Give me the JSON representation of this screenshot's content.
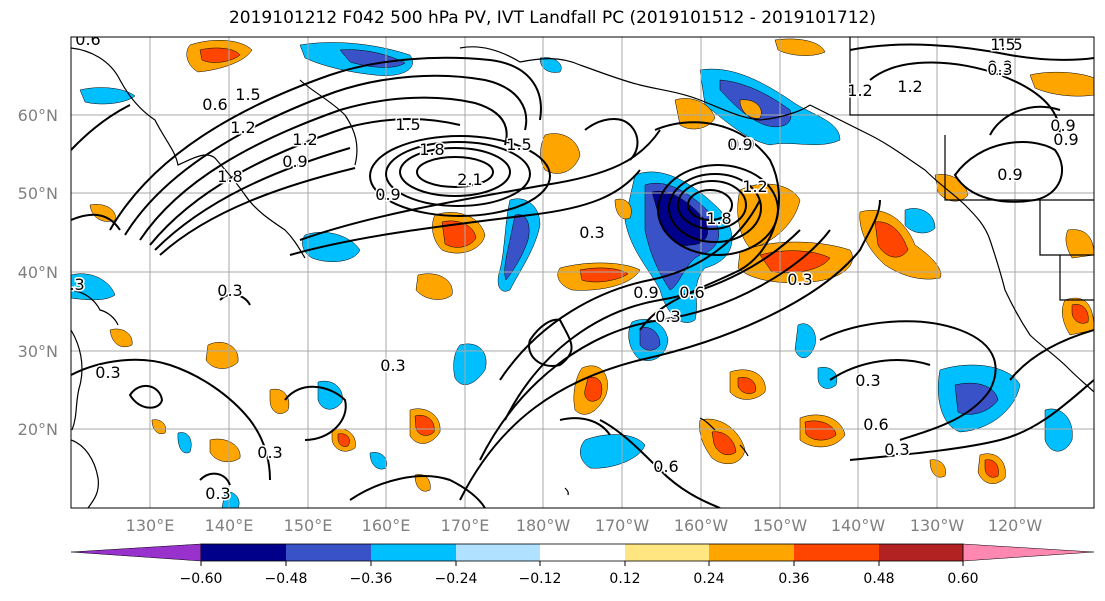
{
  "title": "2019101212 F042 500 hPa PV, IVT Landfall PC (2019101512 - 2019101712)",
  "colors": {
    "neg_060": "#9932cc",
    "neg_048": "#00008b",
    "neg_036": "#3a52c8",
    "neg_024": "#00bfff",
    "neg_012": "#b0e2ff",
    "zero": "#ffffff",
    "pos_012": "#ffe680",
    "pos_024": "#ffa500",
    "pos_036": "#ff4500",
    "pos_048": "#b22222",
    "pos_060": "#ff88b0"
  },
  "lat_labels": [
    "60°N",
    "50°N",
    "40°N",
    "30°N",
    "20°N"
  ],
  "lon_labels": [
    "130°E",
    "140°E",
    "150°E",
    "160°E",
    "170°E",
    "180°W",
    "170°W",
    "160°W",
    "150°W",
    "140°W",
    "130°W",
    "120°W"
  ],
  "colorbar": {
    "tick_labels": [
      "−0.60",
      "−0.48",
      "−0.36",
      "−0.24",
      "−0.12",
      "0.12",
      "0.24",
      "0.36",
      "0.48",
      "0.60"
    ]
  },
  "contour_labels": [
    "0.6",
    "0.6",
    "1.2",
    "1.5",
    "1.8",
    "0.9",
    "1.2",
    "1.5",
    "0.9",
    "1.8",
    "2.1",
    "1.5",
    "0.9",
    "1.2",
    "0.3",
    "0.3",
    "0.6",
    "0.9",
    "0.6",
    "0.3",
    "1.8",
    "1.2",
    "0.9",
    "0.3",
    "1.5",
    "1.2",
    "0.9",
    "1.5",
    "0.9",
    "0.9",
    "0.3",
    "0.3",
    "0.6",
    "0.3",
    "0.3",
    "0.3",
    "0.3",
    "0.3",
    "0.9",
    "0.3",
    "0.3"
  ]
}
